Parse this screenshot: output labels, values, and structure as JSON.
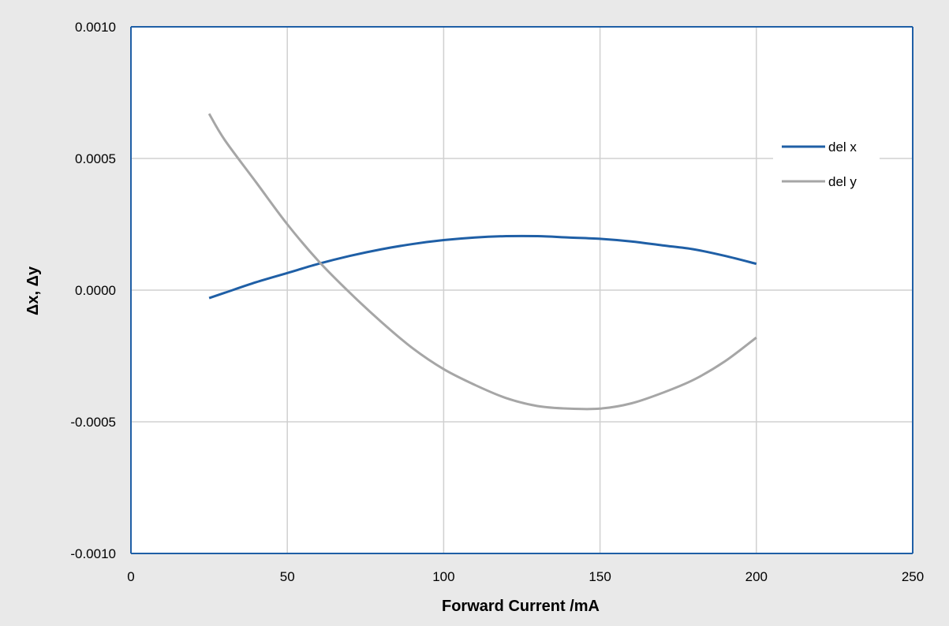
{
  "chart_data": {
    "type": "line",
    "title": "",
    "xlabel": "Forward Current   /mA",
    "ylabel": "Δx, Δy",
    "xlim": [
      0,
      250
    ],
    "ylim": [
      -0.001,
      0.001
    ],
    "x_ticks": [
      {
        "value": 0,
        "label": "0"
      },
      {
        "value": 50,
        "label": "50"
      },
      {
        "value": 100,
        "label": "100"
      },
      {
        "value": 150,
        "label": "150"
      },
      {
        "value": 200,
        "label": "200"
      },
      {
        "value": 250,
        "label": "250"
      }
    ],
    "y_ticks": [
      {
        "value": 0.001,
        "label": "0.0010"
      },
      {
        "value": 0.0005,
        "label": "0.0005"
      },
      {
        "value": 0,
        "label": "0.0000"
      },
      {
        "value": -0.0005,
        "label": "-0.0005"
      },
      {
        "value": -0.001,
        "label": "-0.0010"
      }
    ],
    "grid": true,
    "legend_position": "right",
    "series": [
      {
        "name": "del x",
        "color": "#1f5fa6",
        "x": [
          25,
          30,
          40,
          50,
          60,
          70,
          80,
          90,
          100,
          110,
          120,
          130,
          140,
          150,
          160,
          170,
          180,
          190,
          200
        ],
        "y": [
          -3e-05,
          -1e-05,
          3e-05,
          6.5e-05,
          0.0001,
          0.00013,
          0.000155,
          0.000175,
          0.00019,
          0.0002,
          0.000205,
          0.000205,
          0.0002,
          0.000195,
          0.000185,
          0.00017,
          0.000155,
          0.00013,
          0.0001
        ]
      },
      {
        "name": "del y",
        "color": "#a6a6a6",
        "x": [
          25,
          30,
          40,
          50,
          60,
          70,
          80,
          90,
          100,
          110,
          120,
          130,
          140,
          150,
          160,
          170,
          180,
          190,
          200
        ],
        "y": [
          0.00067,
          0.00057,
          0.00041,
          0.00025,
          0.00011,
          -1e-05,
          -0.00012,
          -0.00022,
          -0.0003,
          -0.00036,
          -0.00041,
          -0.00044,
          -0.00045,
          -0.00045,
          -0.00043,
          -0.00039,
          -0.00034,
          -0.00027,
          -0.00018
        ]
      }
    ]
  }
}
